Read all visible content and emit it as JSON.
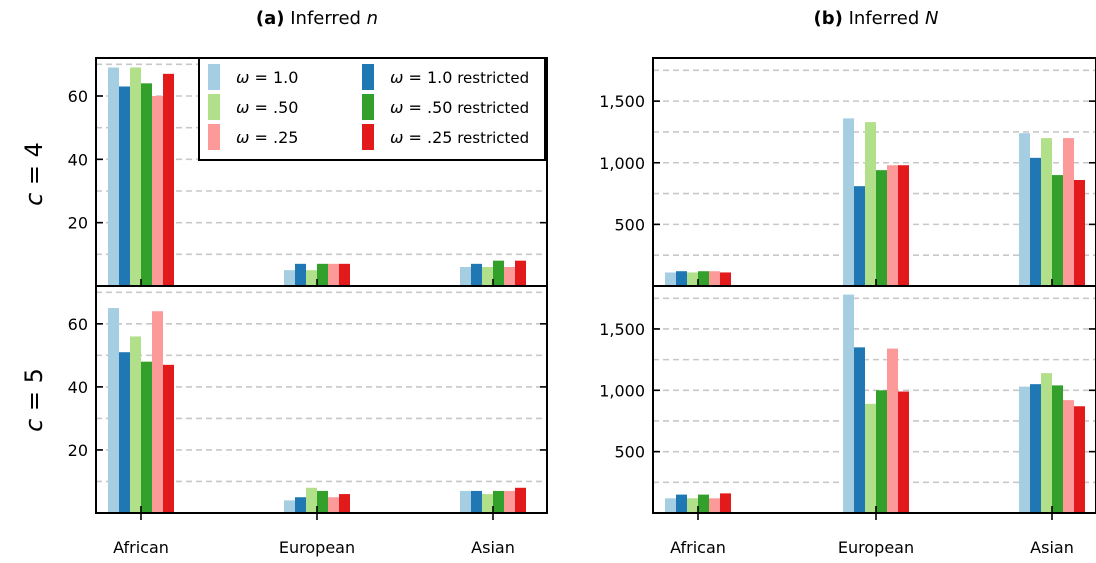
{
  "figure": {
    "row_labels": [
      {
        "var": "c",
        "eq": " = ",
        "val": "4"
      },
      {
        "var": "c",
        "eq": " = ",
        "val": "5"
      }
    ],
    "legend": {
      "entries": [
        {
          "sym": "ω",
          "text": " = 1.0",
          "suffix": "",
          "color": "#a6cee3"
        },
        {
          "sym": "ω",
          "text": " = 1.0",
          "suffix": " restricted",
          "color": "#1f78b4"
        },
        {
          "sym": "ω",
          "text": " = .50",
          "suffix": "",
          "color": "#b2df8a"
        },
        {
          "sym": "ω",
          "text": " = .50",
          "suffix": " restricted",
          "color": "#33a02c"
        },
        {
          "sym": "ω",
          "text": " = .25",
          "suffix": "",
          "color": "#fb9a99"
        },
        {
          "sym": "ω",
          "text": " = .25",
          "suffix": " restricted",
          "color": "#e31a1c"
        }
      ]
    }
  },
  "chart_data": [
    {
      "type": "bar",
      "title_prefix": "(a)",
      "title_main": " Inferred ",
      "title_var": "n",
      "row": "c = 4",
      "categories": [
        "African",
        "European",
        "Asian"
      ],
      "ylim": [
        0,
        72
      ],
      "yticks": [
        20,
        40,
        60
      ],
      "ytick_labels": [
        "20",
        "40",
        "60"
      ],
      "grid": [
        10,
        20,
        30,
        40,
        50,
        60,
        70
      ],
      "series": [
        {
          "values": [
            69,
            5,
            6
          ]
        },
        {
          "values": [
            63,
            7,
            7
          ]
        },
        {
          "values": [
            69,
            5,
            6
          ]
        },
        {
          "values": [
            64,
            7,
            8
          ]
        },
        {
          "values": [
            60,
            7,
            6
          ]
        },
        {
          "values": [
            67,
            7,
            8
          ]
        }
      ]
    },
    {
      "type": "bar",
      "title_prefix": "(b)",
      "title_main": " Inferred ",
      "title_var": "N",
      "row": "c = 4",
      "categories": [
        "African",
        "European",
        "Asian"
      ],
      "ylim": [
        0,
        1850
      ],
      "yticks": [
        500,
        1000,
        1500
      ],
      "ytick_labels": [
        "500",
        "1,000",
        "1,500"
      ],
      "grid": [
        250,
        500,
        750,
        1000,
        1250,
        1500,
        1750
      ],
      "series": [
        {
          "values": [
            110,
            1360,
            1240
          ]
        },
        {
          "values": [
            120,
            810,
            1040
          ]
        },
        {
          "values": [
            110,
            1330,
            1200
          ]
        },
        {
          "values": [
            120,
            940,
            900
          ]
        },
        {
          "values": [
            120,
            980,
            1200
          ]
        },
        {
          "values": [
            110,
            980,
            860
          ]
        }
      ]
    },
    {
      "type": "bar",
      "row": "c = 5",
      "categories": [
        "African",
        "European",
        "Asian"
      ],
      "ylim": [
        0,
        72
      ],
      "yticks": [
        20,
        40,
        60
      ],
      "ytick_labels": [
        "20",
        "40",
        "60"
      ],
      "grid": [
        10,
        20,
        30,
        40,
        50,
        60,
        70
      ],
      "series": [
        {
          "values": [
            65,
            4,
            7
          ]
        },
        {
          "values": [
            51,
            5,
            7
          ]
        },
        {
          "values": [
            56,
            8,
            6
          ]
        },
        {
          "values": [
            48,
            7,
            7
          ]
        },
        {
          "values": [
            64,
            5,
            7
          ]
        },
        {
          "values": [
            47,
            6,
            8
          ]
        }
      ]
    },
    {
      "type": "bar",
      "row": "c = 5",
      "categories": [
        "African",
        "European",
        "Asian"
      ],
      "ylim": [
        0,
        1850
      ],
      "yticks": [
        500,
        1000,
        1500
      ],
      "ytick_labels": [
        "500",
        "1,000",
        "1,500"
      ],
      "grid": [
        250,
        500,
        750,
        1000,
        1250,
        1500,
        1750
      ],
      "series": [
        {
          "values": [
            120,
            1780,
            1030
          ]
        },
        {
          "values": [
            150,
            1350,
            1050
          ]
        },
        {
          "values": [
            120,
            890,
            1140
          ]
        },
        {
          "values": [
            150,
            1000,
            1040
          ]
        },
        {
          "values": [
            120,
            1340,
            920
          ]
        },
        {
          "values": [
            160,
            990,
            870
          ]
        }
      ]
    }
  ]
}
